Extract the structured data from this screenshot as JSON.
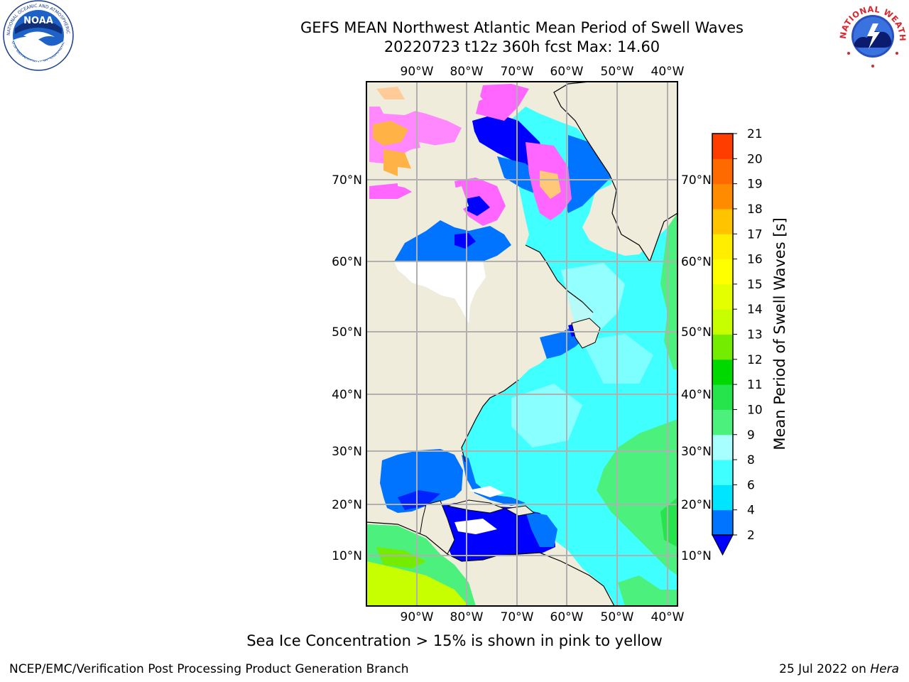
{
  "header": {
    "title_line1": "GEFS MEAN Northwest Atlantic Mean Period of Swell Waves",
    "title_line2": "20220723 t12z 360h fcst   Max: 14.60"
  },
  "logos": {
    "left": {
      "name": "NOAA",
      "ring_text": "NATIONAL OCEANIC AND ATMOSPHERIC ADMINISTRATION",
      "ring_text_bottom": "U.S. DEPARTMENT OF COMMERCE"
    },
    "right": {
      "ring_text": "NATIONAL WEATHER SERVICE"
    }
  },
  "map": {
    "longitude_labels": [
      "90°W",
      "80°W",
      "70°W",
      "60°W",
      "50°W",
      "40°W"
    ],
    "latitude_labels": [
      "70°N",
      "60°N",
      "50°N",
      "40°N",
      "30°N",
      "20°N",
      "10°N"
    ]
  },
  "colorbar": {
    "label": "Mean Period of Swell Waves [s]",
    "ticks": [
      "2",
      "4",
      "6",
      "8",
      "9",
      "10",
      "11",
      "12",
      "13",
      "14",
      "15",
      "16",
      "17",
      "18",
      "19",
      "20",
      "21"
    ],
    "colors": [
      "#0073ff",
      "#00e5ff",
      "#40ffff",
      "#a8ffff",
      "#4cf07c",
      "#26e54c",
      "#00d900",
      "#73ec00",
      "#c8ff00",
      "#e4ff00",
      "#ffff00",
      "#ffee00",
      "#ffc300",
      "#ff8c00",
      "#ff6a00",
      "#ff3d00",
      "#ff0000"
    ],
    "under_color": "#0000ff"
  },
  "footer": {
    "note": "Sea Ice Concentration > 15% is shown in pink to yellow",
    "credit": "NCEP/EMC/Verification Post Processing Product Generation Branch",
    "date": "25 Jul 2022 on",
    "host": "Hera"
  },
  "palette": {
    "land": "#efecdc",
    "ocean_cyan": "#40ffff",
    "ocean_light": "#a8ffff",
    "ocean_blue": "#0073ff",
    "ocean_deep": "#0000ff",
    "ocean_green": "#4cf07c",
    "ice_pink": "#ff66ff",
    "ice_orange": "#ffb347",
    "gridline": "#b0b0b0"
  }
}
